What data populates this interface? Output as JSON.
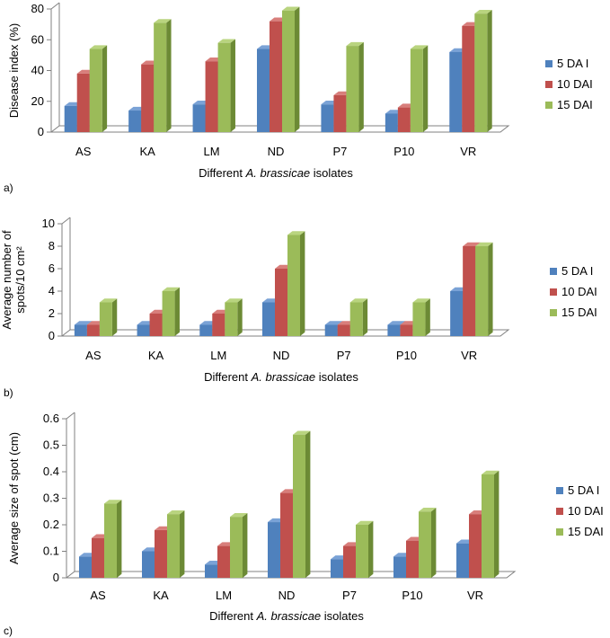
{
  "chart_data": [
    {
      "panel_label": "a)",
      "type": "bar",
      "categories": [
        "AS",
        "KA",
        "LM",
        "ND",
        "P7",
        "P10",
        "VR"
      ],
      "series": [
        {
          "name": "5 DA I",
          "values": [
            17,
            14,
            18,
            54,
            18,
            12,
            52
          ]
        },
        {
          "name": "10 DAI",
          "values": [
            38,
            44,
            46,
            72,
            24,
            16,
            69
          ]
        },
        {
          "name": "15 DAI",
          "values": [
            54,
            71,
            58,
            79,
            56,
            54,
            77
          ]
        }
      ],
      "xlabel_pre": "Different ",
      "xlabel_italic": "A. brassicae",
      "xlabel_post": " isolates",
      "ylabel": "Disease index (%)",
      "ylabel_lines": [
        "Disease index (%)"
      ],
      "ylim": [
        0,
        80
      ],
      "yticks": [
        "0",
        "20",
        "40",
        "60",
        "80"
      ],
      "legend_position": "right",
      "grid": false
    },
    {
      "panel_label": "b)",
      "type": "bar",
      "categories": [
        "AS",
        "KA",
        "LM",
        "ND",
        "P7",
        "P10",
        "VR"
      ],
      "series": [
        {
          "name": "5 DA I",
          "values": [
            1,
            1,
            1,
            3,
            1,
            1,
            4
          ]
        },
        {
          "name": "10 DAI",
          "values": [
            1,
            2,
            2,
            6,
            1,
            1,
            8
          ]
        },
        {
          "name": "15 DAI",
          "values": [
            3,
            4,
            3,
            9,
            3,
            3,
            8
          ]
        }
      ],
      "xlabel_pre": "Different ",
      "xlabel_italic": "A. brassicae",
      "xlabel_post": " isolates",
      "ylabel": "Average number of spots/10 cm²",
      "ylabel_lines": [
        "Average number of",
        "spots/10 cm²"
      ],
      "ylim": [
        0,
        10
      ],
      "yticks": [
        "0",
        "2",
        "4",
        "6",
        "8",
        "10"
      ],
      "legend_position": "right",
      "grid": false
    },
    {
      "panel_label": "c)",
      "type": "bar",
      "categories": [
        "AS",
        "KA",
        "LM",
        "ND",
        "P7",
        "P10",
        "VR"
      ],
      "series": [
        {
          "name": "5 DA I",
          "values": [
            0.08,
            0.1,
            0.05,
            0.21,
            0.07,
            0.08,
            0.13
          ]
        },
        {
          "name": "10 DAI",
          "values": [
            0.15,
            0.18,
            0.12,
            0.32,
            0.12,
            0.14,
            0.24
          ]
        },
        {
          "name": "15 DAI",
          "values": [
            0.28,
            0.24,
            0.23,
            0.54,
            0.2,
            0.25,
            0.39
          ]
        }
      ],
      "xlabel_pre": "Different ",
      "xlabel_italic": "A. brassicae",
      "xlabel_post": " isolates",
      "ylabel": "Average size of spot (cm)",
      "ylabel_lines": [
        "Average size of spot (cm)"
      ],
      "ylim": [
        0,
        0.6
      ],
      "yticks": [
        "0",
        "0.1",
        "0.2",
        "0.3",
        "0.4",
        "0.5",
        "0.6"
      ],
      "legend_position": "right",
      "grid": false
    }
  ],
  "colors": {
    "series": [
      {
        "front": "#4f81bd",
        "top": "#7aa2d6",
        "side": "#2f5a8f"
      },
      {
        "front": "#c0504d",
        "top": "#d87e7b",
        "side": "#8c2e2c"
      },
      {
        "front": "#9bbb59",
        "top": "#b9d47f",
        "side": "#6c8a35"
      }
    ],
    "axis": "#808080",
    "floor": "#d9d9d9"
  }
}
